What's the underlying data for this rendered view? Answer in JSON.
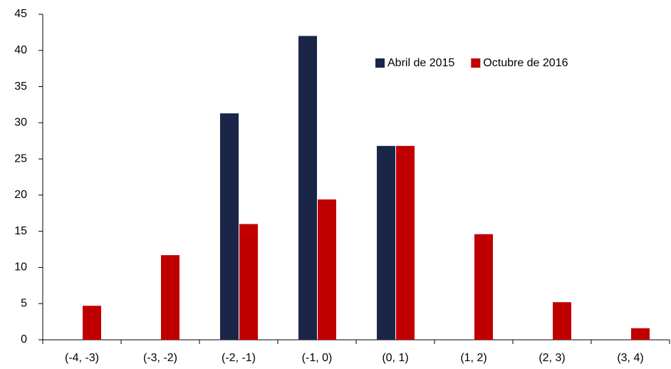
{
  "chart_data": {
    "type": "bar",
    "categories": [
      "(-4, -3)",
      "(-3, -2)",
      "(-2, -1)",
      "(-1, 0)",
      "(0, 1)",
      "(1, 2)",
      "(2, 3)",
      "(3, 4)"
    ],
    "series": [
      {
        "name": "Abril de 2015",
        "color": "#1b2548",
        "values": [
          0,
          0,
          31.3,
          42,
          26.8,
          0,
          0,
          0
        ]
      },
      {
        "name": "Octubre de 2016",
        "color": "#c00000",
        "values": [
          4.7,
          11.7,
          16,
          19.4,
          26.8,
          14.6,
          5.2,
          1.6
        ]
      }
    ],
    "ylim": [
      0,
      45
    ],
    "yticks": [
      0,
      5,
      10,
      15,
      20,
      25,
      30,
      35,
      40,
      45
    ],
    "grid": false,
    "legend": "top-right"
  }
}
